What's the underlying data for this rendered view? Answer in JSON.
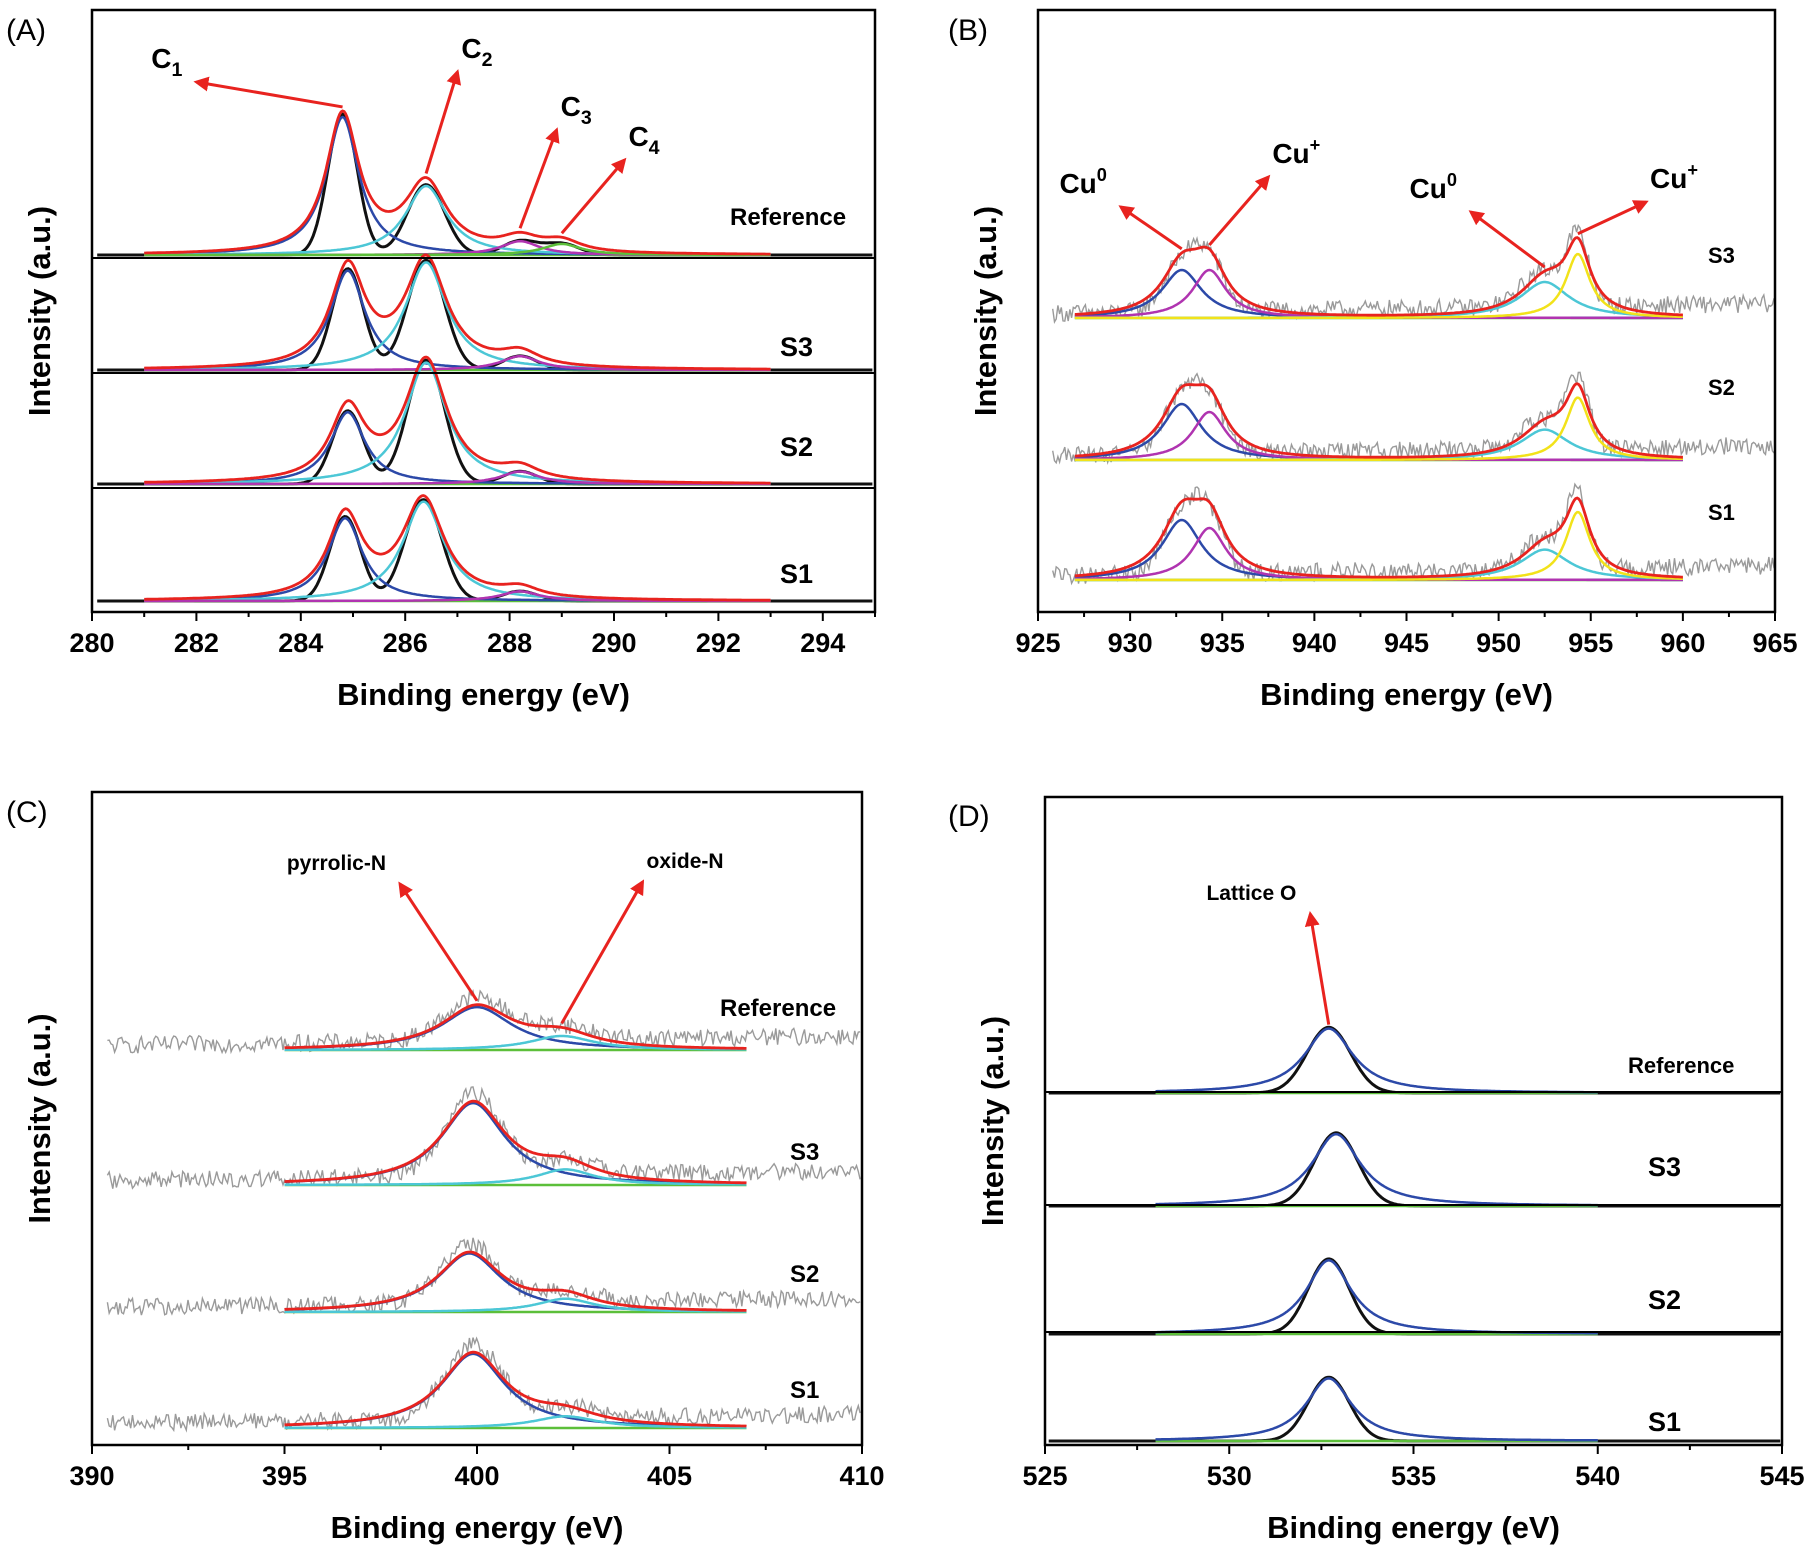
{
  "figure": {
    "colors": {
      "axis": "#000000",
      "arrow": "#e8231f",
      "envelope": "#e8231f",
      "peak_blue": "#2c49a8",
      "peak_cyan": "#4cc7d6",
      "peak_magenta": "#b034b0",
      "peak_yellow": "#f2e21a",
      "baseline_green": "#5cbf3a",
      "raw_gray": "#9a9a9a",
      "raw_black": "#111111"
    }
  },
  "chart_data": [
    {
      "id": "A",
      "panel_label": "(A)",
      "type": "line",
      "xlabel": "Binding energy (eV)",
      "ylabel": "Intensity (a.u.)",
      "xlim": [
        280,
        295
      ],
      "xticks": [
        "280",
        "282",
        "284",
        "286",
        "288",
        "290",
        "292",
        "294"
      ],
      "fit_range": [
        281,
        293
      ],
      "raw_style": "black",
      "separators": true,
      "series": [
        {
          "name": "Reference",
          "peaks": [
            {
              "center": 284.8,
              "height": 1.0,
              "width": 0.38,
              "color": "blue"
            },
            {
              "center": 286.4,
              "height": 0.5,
              "width": 0.48,
              "color": "cyan"
            },
            {
              "center": 288.2,
              "height": 0.1,
              "width": 0.45,
              "color": "magenta"
            },
            {
              "center": 289.0,
              "height": 0.08,
              "width": 0.45,
              "color": "green"
            }
          ]
        },
        {
          "name": "S3",
          "peaks": [
            {
              "center": 284.9,
              "height": 0.72,
              "width": 0.4,
              "color": "blue"
            },
            {
              "center": 286.4,
              "height": 0.78,
              "width": 0.48,
              "color": "cyan"
            },
            {
              "center": 288.2,
              "height": 0.1,
              "width": 0.45,
              "color": "magenta"
            }
          ]
        },
        {
          "name": "S2",
          "peaks": [
            {
              "center": 284.9,
              "height": 0.52,
              "width": 0.4,
              "color": "blue"
            },
            {
              "center": 286.4,
              "height": 0.88,
              "width": 0.48,
              "color": "cyan"
            },
            {
              "center": 288.2,
              "height": 0.09,
              "width": 0.45,
              "color": "magenta"
            }
          ]
        },
        {
          "name": "S1",
          "peaks": [
            {
              "center": 284.85,
              "height": 0.6,
              "width": 0.4,
              "color": "blue"
            },
            {
              "center": 286.35,
              "height": 0.72,
              "width": 0.48,
              "color": "cyan"
            },
            {
              "center": 288.2,
              "height": 0.07,
              "width": 0.45,
              "color": "magenta"
            }
          ]
        }
      ],
      "annotations": [
        {
          "text": "C",
          "sub": "1",
          "peak_x": 284.8,
          "series": 0,
          "label_x": 282.0
        },
        {
          "text": "C",
          "sub": "2",
          "peak_x": 286.4,
          "series": 0,
          "label_x": 287.0
        },
        {
          "text": "C",
          "sub": "3",
          "peak_x": 288.2,
          "series": 0,
          "label_x": 288.9
        },
        {
          "text": "C",
          "sub": "4",
          "peak_x": 289.0,
          "series": 0,
          "label_x": 290.2
        }
      ]
    },
    {
      "id": "B",
      "panel_label": "(B)",
      "type": "line",
      "xlabel": "Binding energy (eV)",
      "ylabel": "Intensity (a.u.)",
      "xlim": [
        925,
        965
      ],
      "xticks": [
        "925",
        "930",
        "935",
        "940",
        "945",
        "950",
        "955",
        "960",
        "965"
      ],
      "fit_range": [
        927,
        960
      ],
      "raw_style": "gray-noise",
      "separators": false,
      "series": [
        {
          "name": "S3",
          "peaks": [
            {
              "center": 932.8,
              "height": 0.6,
              "width": 1.3,
              "color": "blue"
            },
            {
              "center": 934.3,
              "height": 0.6,
              "width": 1.1,
              "color": "magenta"
            },
            {
              "center": 952.5,
              "height": 0.45,
              "width": 1.6,
              "color": "cyan"
            },
            {
              "center": 954.3,
              "height": 0.8,
              "width": 0.8,
              "color": "yellow"
            }
          ]
        },
        {
          "name": "S2",
          "peaks": [
            {
              "center": 932.8,
              "height": 0.7,
              "width": 1.3,
              "color": "blue"
            },
            {
              "center": 934.3,
              "height": 0.6,
              "width": 1.1,
              "color": "magenta"
            },
            {
              "center": 952.5,
              "height": 0.38,
              "width": 1.6,
              "color": "cyan"
            },
            {
              "center": 954.3,
              "height": 0.78,
              "width": 0.8,
              "color": "yellow"
            }
          ]
        },
        {
          "name": "S1",
          "peaks": [
            {
              "center": 932.8,
              "height": 0.75,
              "width": 1.3,
              "color": "blue"
            },
            {
              "center": 934.3,
              "height": 0.65,
              "width": 1.1,
              "color": "magenta"
            },
            {
              "center": 952.5,
              "height": 0.38,
              "width": 1.6,
              "color": "cyan"
            },
            {
              "center": 954.3,
              "height": 0.85,
              "width": 0.8,
              "color": "yellow"
            }
          ]
        }
      ],
      "annotations": [
        {
          "text": "Cu",
          "sup": "0",
          "peak_x": 932.8,
          "series": 0,
          "label_x": 929.5
        },
        {
          "text": "Cu",
          "sup": "+",
          "peak_x": 934.3,
          "series": 0,
          "label_x": 937.5
        },
        {
          "text": "Cu",
          "sup": "0",
          "peak_x": 952.5,
          "series": 0,
          "label_x": 948.5
        },
        {
          "text": "Cu",
          "sup": "+",
          "peak_x": 954.3,
          "series": 0,
          "label_x": 958.0
        }
      ]
    },
    {
      "id": "C",
      "panel_label": "(C)",
      "type": "line",
      "xlabel": "Binding energy (eV)",
      "ylabel": "Intensity (a.u.)",
      "xlim": [
        390,
        410
      ],
      "xticks": [
        "390",
        "395",
        "400",
        "405",
        "410"
      ],
      "fit_range": [
        395,
        407
      ],
      "raw_style": "gray-noise",
      "separators": false,
      "series": [
        {
          "name": "Reference",
          "peaks": [
            {
              "center": 400.0,
              "height": 0.55,
              "width": 1.1,
              "color": "blue"
            },
            {
              "center": 402.2,
              "height": 0.18,
              "width": 1.0,
              "color": "cyan"
            }
          ]
        },
        {
          "name": "S3",
          "peaks": [
            {
              "center": 399.9,
              "height": 1.05,
              "width": 1.0,
              "color": "blue"
            },
            {
              "center": 402.3,
              "height": 0.2,
              "width": 0.9,
              "color": "cyan"
            }
          ]
        },
        {
          "name": "S2",
          "peaks": [
            {
              "center": 399.8,
              "height": 0.75,
              "width": 1.0,
              "color": "blue"
            },
            {
              "center": 402.3,
              "height": 0.17,
              "width": 0.9,
              "color": "cyan"
            }
          ]
        },
        {
          "name": "S1",
          "peaks": [
            {
              "center": 399.9,
              "height": 0.95,
              "width": 1.0,
              "color": "blue"
            },
            {
              "center": 402.3,
              "height": 0.15,
              "width": 1.0,
              "color": "cyan"
            }
          ]
        }
      ],
      "annotations": [
        {
          "text": "pyrrolic-N",
          "peak_x": 400.0,
          "series": 0,
          "label_x": 398.0
        },
        {
          "text": "oxide-N",
          "peak_x": 402.2,
          "series": 0,
          "label_x": 404.3
        }
      ]
    },
    {
      "id": "D",
      "panel_label": "(D)",
      "type": "line",
      "xlabel": "Binding energy (eV)",
      "ylabel": "Intensity (a.u.)",
      "xlim": [
        525,
        545
      ],
      "xticks": [
        "525",
        "530",
        "535",
        "540",
        "545"
      ],
      "fit_range": [
        528,
        540
      ],
      "raw_style": "black",
      "separators": true,
      "series": [
        {
          "name": "Reference",
          "peaks": [
            {
              "center": 532.7,
              "height": 0.7,
              "width": 0.8,
              "color": "blue"
            }
          ]
        },
        {
          "name": "S3",
          "peaks": [
            {
              "center": 532.9,
              "height": 0.78,
              "width": 0.8,
              "color": "blue"
            }
          ]
        },
        {
          "name": "S2",
          "peaks": [
            {
              "center": 532.7,
              "height": 0.8,
              "width": 0.75,
              "color": "blue"
            }
          ]
        },
        {
          "name": "S1",
          "peaks": [
            {
              "center": 532.7,
              "height": 0.68,
              "width": 0.75,
              "color": "blue"
            }
          ]
        }
      ],
      "annotations": [
        {
          "text": "Lattice O",
          "peak_x": 532.7,
          "series": 0,
          "label_x": 532.2
        }
      ]
    }
  ]
}
